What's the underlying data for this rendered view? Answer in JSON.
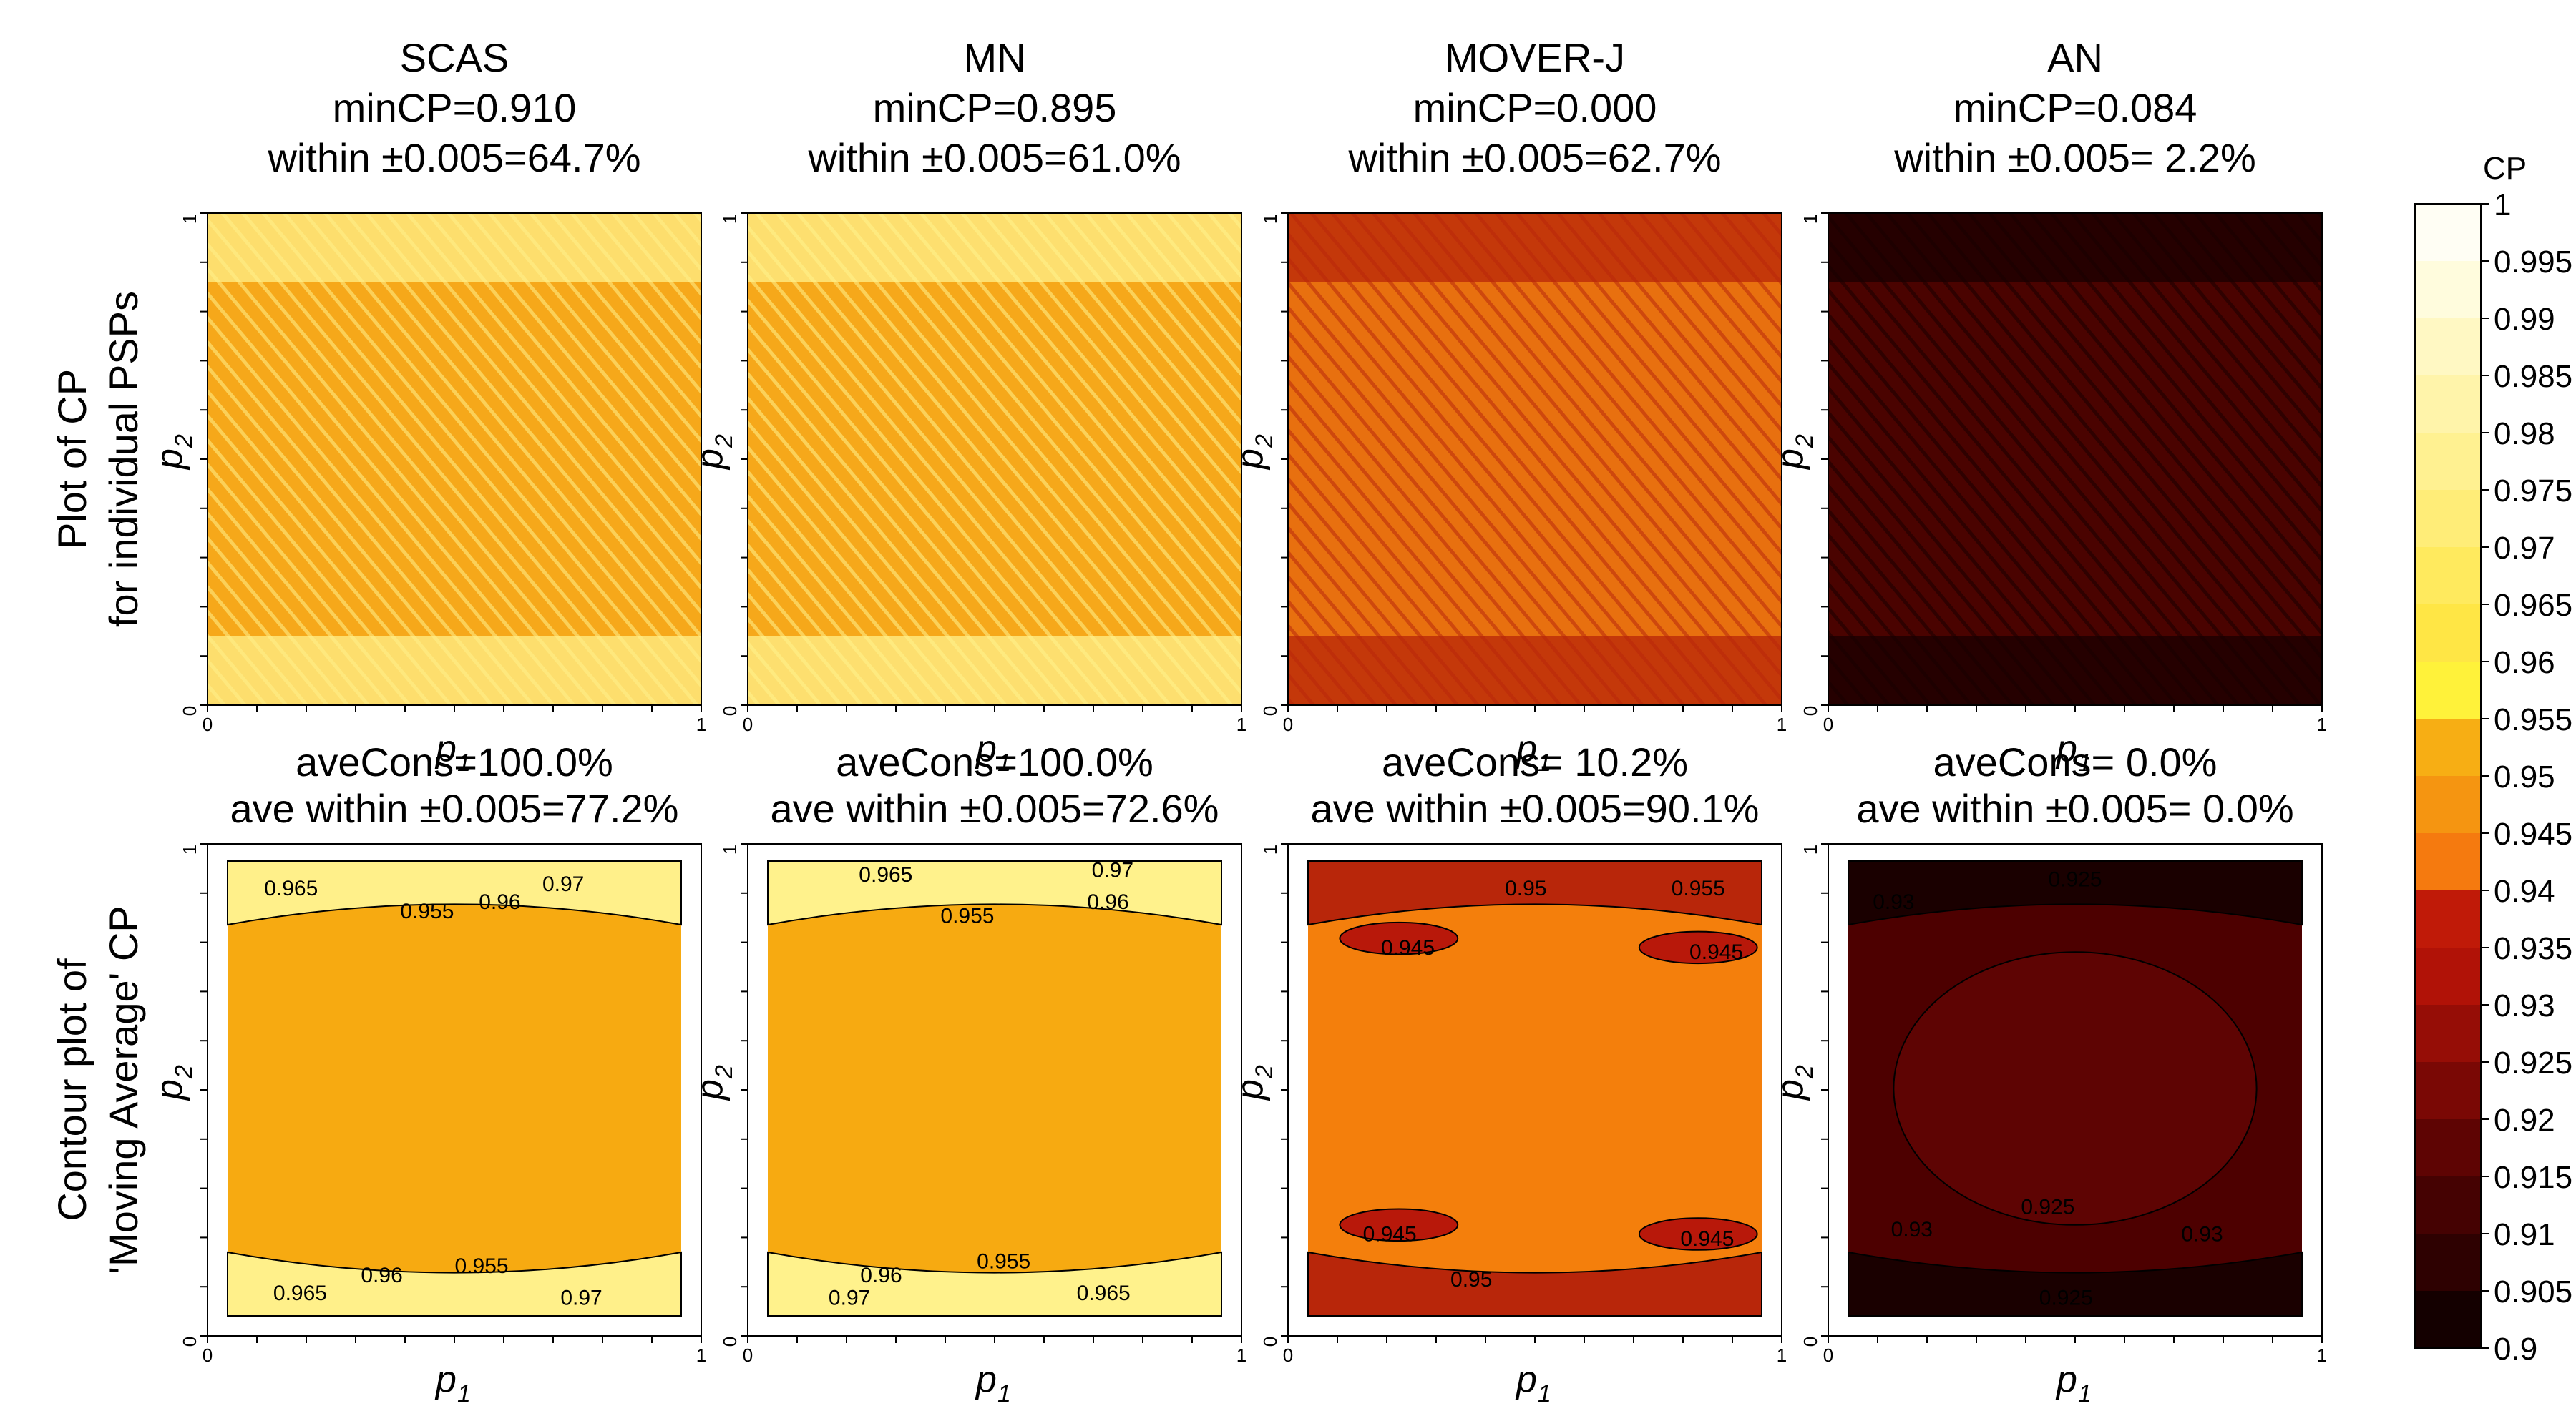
{
  "chart_data": {
    "type": "heatmap",
    "columns": [
      {
        "method": "SCAS",
        "mincp_label": "minCP=0.910",
        "within_label": "within ±0.005=64.7%",
        "ave_cons_label": "aveCons=100.0%",
        "ave_within_label": "ave within ±0.005=77.2%",
        "top_color": "#f6a81a",
        "edge_color": "#fff08a",
        "bottom_fill": "#f7aa11"
      },
      {
        "method": "MN",
        "mincp_label": "minCP=0.895",
        "within_label": "within ±0.005=61.0%",
        "ave_cons_label": "aveCons=100.0%",
        "ave_within_label": "ave within ±0.005=72.6%",
        "top_color": "#f6a81a",
        "edge_color": "#fff28c",
        "bottom_fill": "#f7aa11"
      },
      {
        "method": "MOVER-J",
        "mincp_label": "minCP=0.000",
        "within_label": "within ±0.005=62.7%",
        "ave_cons_label": "aveCons= 10.2%",
        "ave_within_label": "ave within ±0.005=90.1%",
        "top_color": "#e8700f",
        "edge_color": "#b8260a",
        "bottom_fill": "#f47f0c"
      },
      {
        "method": "AN",
        "mincp_label": "minCP=0.084",
        "within_label": "within ±0.005= 2.2%",
        "ave_cons_label": "aveCons=  0.0%",
        "ave_within_label": "ave within ±0.005= 0.0%",
        "top_color": "#4a0300",
        "edge_color": "#1a0000",
        "bottom_fill": "#4d0000"
      }
    ],
    "row_labels": [
      [
        "Plot of CP",
        "for individual PSPs"
      ],
      [
        "Contour plot of",
        "'Moving Average' CP"
      ]
    ],
    "xlabel": "p",
    "xlabel_sub": "1",
    "ylabel": "p",
    "ylabel_sub": "2",
    "axis_ticks": [
      "0",
      "1"
    ],
    "xlim": [
      0,
      1
    ],
    "ylim": [
      0,
      1
    ],
    "contour_labels": [
      [
        "0.965",
        "0.97",
        "0.955",
        "0.96",
        "0.96",
        "0.955",
        "0.965",
        "0.97"
      ],
      [
        "0.965",
        "0.97",
        "0.955",
        "0.96",
        "0.96",
        "0.955",
        "0.97",
        "0.965"
      ],
      [
        "0.95",
        "0.955",
        "0.945",
        "0.945",
        "0.945",
        "0.945",
        "0.95"
      ],
      [
        "0.93",
        "0.925",
        "0.925",
        "0.925",
        "0.93",
        "0.93"
      ]
    ],
    "colorbar": {
      "title": "CP",
      "levels": [
        "1",
        "0.995",
        "0.99",
        "0.985",
        "0.98",
        "0.975",
        "0.97",
        "0.965",
        "0.96",
        "0.955",
        "0.95",
        "0.945",
        "0.94",
        "0.935",
        "0.93",
        "0.925",
        "0.92",
        "0.915",
        "0.91",
        "0.905",
        "0.9"
      ],
      "colors": [
        "#fffef4",
        "#fffcdd",
        "#fff8c3",
        "#fff4aa",
        "#fff191",
        "#ffed78",
        "#ffea5e",
        "#ffe645",
        "#fff23a",
        "#f7ae14",
        "#f59511",
        "#f57a0f",
        "#c01a08",
        "#b11207",
        "#960d06",
        "#7a0805",
        "#5e0403",
        "#450202",
        "#2e0101",
        "#140000"
      ]
    }
  }
}
